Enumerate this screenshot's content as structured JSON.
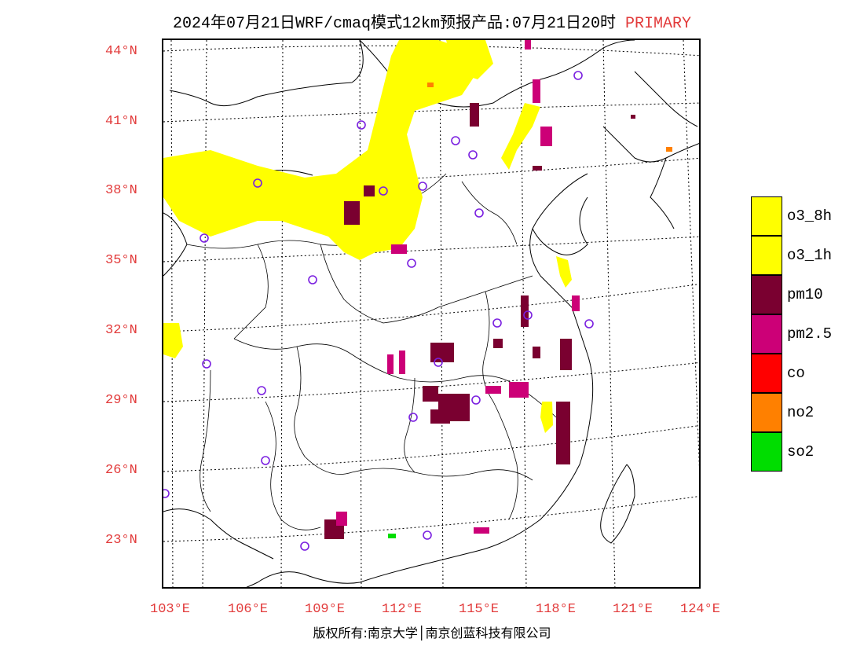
{
  "title": {
    "main": "2024年07月21日WRF/cmaq模式12km预报产品:07月21日20时",
    "tag": "PRIMARY"
  },
  "map": {
    "lat_labels": [
      "44°N",
      "41°N",
      "38°N",
      "35°N",
      "32°N",
      "29°N",
      "26°N",
      "23°N"
    ],
    "lon_labels": [
      "103°E",
      "106°E",
      "109°E",
      "112°E",
      "115°E",
      "118°E",
      "121°E",
      "124°E"
    ]
  },
  "legend": {
    "items": [
      {
        "label": "o3_8h",
        "color": "#ffff00"
      },
      {
        "label": "o3_1h",
        "color": "#ffff00"
      },
      {
        "label": "pm10",
        "color": "#7a0030"
      },
      {
        "label": "pm2.5",
        "color": "#cc0077"
      },
      {
        "label": "co",
        "color": "#ff0000"
      },
      {
        "label": "no2",
        "color": "#ff8000"
      },
      {
        "label": "so2",
        "color": "#00dd00"
      }
    ]
  },
  "credit": "版权所有:南京大学│南京创蓝科技有限公司"
}
